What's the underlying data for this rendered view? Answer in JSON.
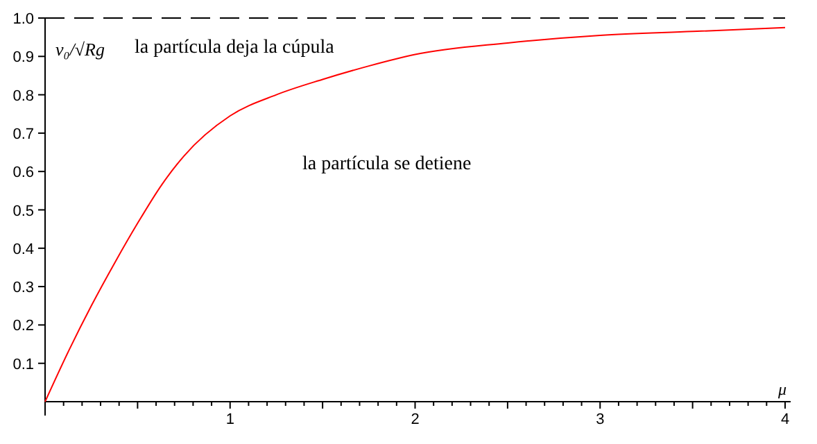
{
  "chart_data": {
    "type": "line",
    "xlabel": "μ",
    "ylabel": "v₀/√Rg",
    "annotations": [
      "la partícula deja la cúpula",
      "la partícula se detiene"
    ],
    "x": [
      0,
      0.13,
      0.25,
      0.38,
      0.5,
      0.63,
      0.75,
      1,
      1.25,
      1.5,
      1.75,
      2,
      2.5,
      3,
      3.5,
      4
    ],
    "series": [
      {
        "color": "#ff0000",
        "values": [
          0,
          0.135,
          0.25,
          0.365,
          0.465,
          0.565,
          0.64,
          0.745,
          0.8,
          0.84,
          0.875,
          0.905,
          0.935,
          0.955,
          0.965,
          0.975
        ]
      }
    ],
    "xlim": [
      0,
      4
    ],
    "ylim": [
      0,
      1
    ],
    "xticks": [
      {
        "value": 0.1,
        "label": null
      },
      {
        "value": 0.2,
        "label": null
      },
      {
        "value": 0.3,
        "label": null
      },
      {
        "value": 0.4,
        "label": null
      },
      {
        "value": 0.5,
        "label": null
      },
      {
        "value": 0.6,
        "label": null
      },
      {
        "value": 0.7,
        "label": null
      },
      {
        "value": 0.8,
        "label": null
      },
      {
        "value": 0.9,
        "label": null
      },
      1,
      {
        "value": 1.1,
        "label": null
      },
      {
        "value": 1.2,
        "label": null
      },
      {
        "value": 1.3,
        "label": null
      },
      {
        "value": 1.4,
        "label": null
      },
      {
        "value": 1.5,
        "label": null
      },
      {
        "value": 1.6,
        "label": null
      },
      {
        "value": 1.7,
        "label": null
      },
      {
        "value": 1.8,
        "label": null
      },
      {
        "value": 1.9,
        "label": null
      },
      2,
      {
        "value": 2.1,
        "label": null
      },
      {
        "value": 2.2,
        "label": null
      },
      {
        "value": 2.3,
        "label": null
      },
      {
        "value": 2.4,
        "label": null
      },
      {
        "value": 2.5,
        "label": null
      },
      {
        "value": 2.6,
        "label": null
      },
      {
        "value": 2.7,
        "label": null
      },
      {
        "value": 2.8,
        "label": null
      },
      {
        "value": 2.9,
        "label": null
      },
      3,
      {
        "value": 3.1,
        "label": null
      },
      {
        "value": 3.2,
        "label": null
      },
      {
        "value": 3.3,
        "label": null
      },
      {
        "value": 3.4,
        "label": null
      },
      {
        "value": 3.5,
        "label": null
      },
      {
        "value": 3.6,
        "label": null
      },
      {
        "value": 3.7,
        "label": null
      },
      {
        "value": 3.8,
        "label": null
      },
      {
        "value": 3.9,
        "label": null
      },
      4
    ],
    "yticks": [
      0.1,
      0.2,
      0.3,
      0.4,
      0.5,
      0.6,
      0.7,
      0.8,
      0.9,
      {
        "value": 1,
        "label": "1.0"
      }
    ],
    "ref_lines": [
      {
        "axis": "y",
        "value": 1,
        "color": "#000000",
        "line_style": "dashed"
      }
    ],
    "grid": false,
    "marker": "none",
    "line_style": "solid"
  }
}
